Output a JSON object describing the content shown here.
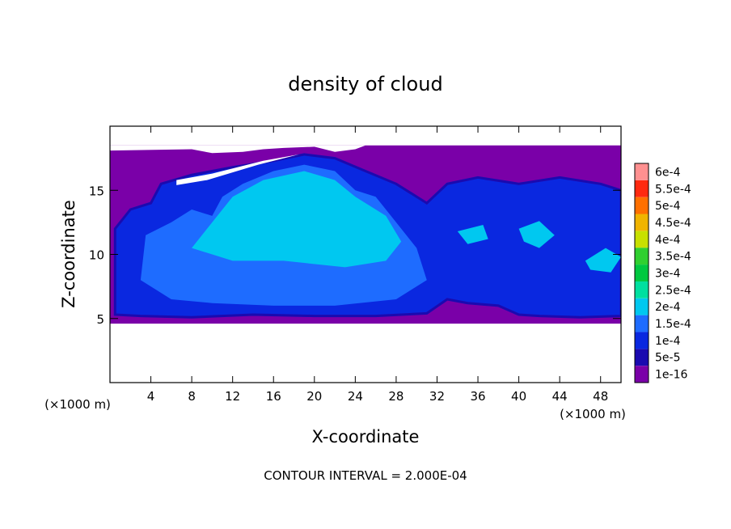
{
  "chart_data": {
    "type": "heatmap",
    "title": "density of cloud",
    "xlabel": "X-coordinate",
    "ylabel": "Z-coordinate",
    "x_unit_note": "(×1000 m)",
    "y_unit_note": "(×1000 m)",
    "footer": "CONTOUR INTERVAL = 2.000E-04",
    "xlim": [
      0,
      50
    ],
    "ylim": [
      0,
      20
    ],
    "x_ticks": [
      4,
      8,
      12,
      16,
      20,
      24,
      28,
      32,
      36,
      40,
      44,
      48
    ],
    "y_ticks": [
      5,
      10,
      15
    ],
    "colorbar": {
      "labels": [
        "1e-16",
        "5e-5",
        "1e-4",
        "1.5e-4",
        "2e-4",
        "2.5e-4",
        "3e-4",
        "3.5e-4",
        "4e-4",
        "4.5e-4",
        "5e-4",
        "5.5e-4",
        "6e-4"
      ],
      "colors": [
        "#7a00a8",
        "#1a0ab0",
        "#0a28e0",
        "#1e6cff",
        "#00c8f0",
        "#00e0a0",
        "#00c840",
        "#30d030",
        "#c8e000",
        "#f0b400",
        "#ff7000",
        "#ff2a10",
        "#ff9090"
      ]
    },
    "regions": {
      "purple_band": [
        [
          0,
          18.5
        ],
        [
          50,
          18.5
        ],
        [
          50,
          4.6
        ],
        [
          0,
          4.6
        ]
      ],
      "blue_body": [
        [
          0.5,
          12
        ],
        [
          2,
          13.5
        ],
        [
          4,
          14
        ],
        [
          5,
          15.5
        ],
        [
          8,
          16.2
        ],
        [
          12,
          16.8
        ],
        [
          16,
          17.3
        ],
        [
          19,
          17.8
        ],
        [
          22,
          17.5
        ],
        [
          25,
          16.5
        ],
        [
          28,
          15.5
        ],
        [
          31,
          14
        ],
        [
          33,
          15.5
        ],
        [
          36,
          16
        ],
        [
          40,
          15.5
        ],
        [
          44,
          16
        ],
        [
          48,
          15.5
        ],
        [
          50,
          15
        ],
        [
          50,
          5.2
        ],
        [
          46,
          5.1
        ],
        [
          42,
          5.2
        ],
        [
          40,
          5.3
        ],
        [
          38,
          6
        ],
        [
          35,
          6.2
        ],
        [
          33,
          6.5
        ],
        [
          31,
          5.4
        ],
        [
          26,
          5.2
        ],
        [
          20,
          5.2
        ],
        [
          14,
          5.3
        ],
        [
          8,
          5.1
        ],
        [
          3,
          5.2
        ],
        [
          0.5,
          5.3
        ]
      ],
      "light_blue_body": [
        [
          3,
          8
        ],
        [
          3.5,
          11.5
        ],
        [
          6,
          12.5
        ],
        [
          8,
          13.5
        ],
        [
          10,
          13
        ],
        [
          11,
          14.5
        ],
        [
          13,
          15.5
        ],
        [
          16,
          16.5
        ],
        [
          19,
          17
        ],
        [
          22,
          16.5
        ],
        [
          24,
          15
        ],
        [
          26,
          14.5
        ],
        [
          28,
          12.5
        ],
        [
          30,
          10.5
        ],
        [
          31,
          8
        ],
        [
          28,
          6.5
        ],
        [
          22,
          6
        ],
        [
          16,
          6
        ],
        [
          10,
          6.2
        ],
        [
          6,
          6.5
        ]
      ],
      "cyan_core": [
        [
          8,
          10.5
        ],
        [
          10,
          12.5
        ],
        [
          12,
          14.5
        ],
        [
          15,
          15.8
        ],
        [
          19,
          16.5
        ],
        [
          22,
          15.8
        ],
        [
          24,
          14.5
        ],
        [
          27,
          13
        ],
        [
          28.5,
          11
        ],
        [
          27,
          9.5
        ],
        [
          23,
          9
        ],
        [
          17,
          9.5
        ],
        [
          12,
          9.5
        ]
      ],
      "cyan_patches": [
        [
          [
            40,
            12
          ],
          [
            42,
            12.6
          ],
          [
            43.5,
            11.5
          ],
          [
            42,
            10.5
          ],
          [
            40.5,
            11
          ]
        ],
        [
          [
            34,
            11.8
          ],
          [
            36.5,
            12.3
          ],
          [
            37,
            11.2
          ],
          [
            35,
            10.8
          ]
        ],
        [
          [
            46.5,
            9.5
          ],
          [
            48.5,
            10.5
          ],
          [
            50,
            9.8
          ],
          [
            49,
            8.6
          ],
          [
            47,
            8.8
          ]
        ]
      ],
      "white_holes": [
        [
          [
            6.5,
            15.8
          ],
          [
            10,
            16.3
          ],
          [
            15,
            17.3
          ],
          [
            18.5,
            17.8
          ],
          [
            14.5,
            17.0
          ],
          [
            9.5,
            15.8
          ],
          [
            6.5,
            15.4
          ]
        ],
        [
          [
            0,
            18.5
          ],
          [
            0,
            18.1
          ],
          [
            8,
            18.2
          ],
          [
            10,
            17.9
          ],
          [
            13,
            18.0
          ],
          [
            15,
            18.2
          ],
          [
            17,
            18.3
          ],
          [
            20,
            18.4
          ],
          [
            22,
            18.0
          ],
          [
            24,
            18.2
          ],
          [
            25,
            18.5
          ]
        ]
      ]
    }
  }
}
